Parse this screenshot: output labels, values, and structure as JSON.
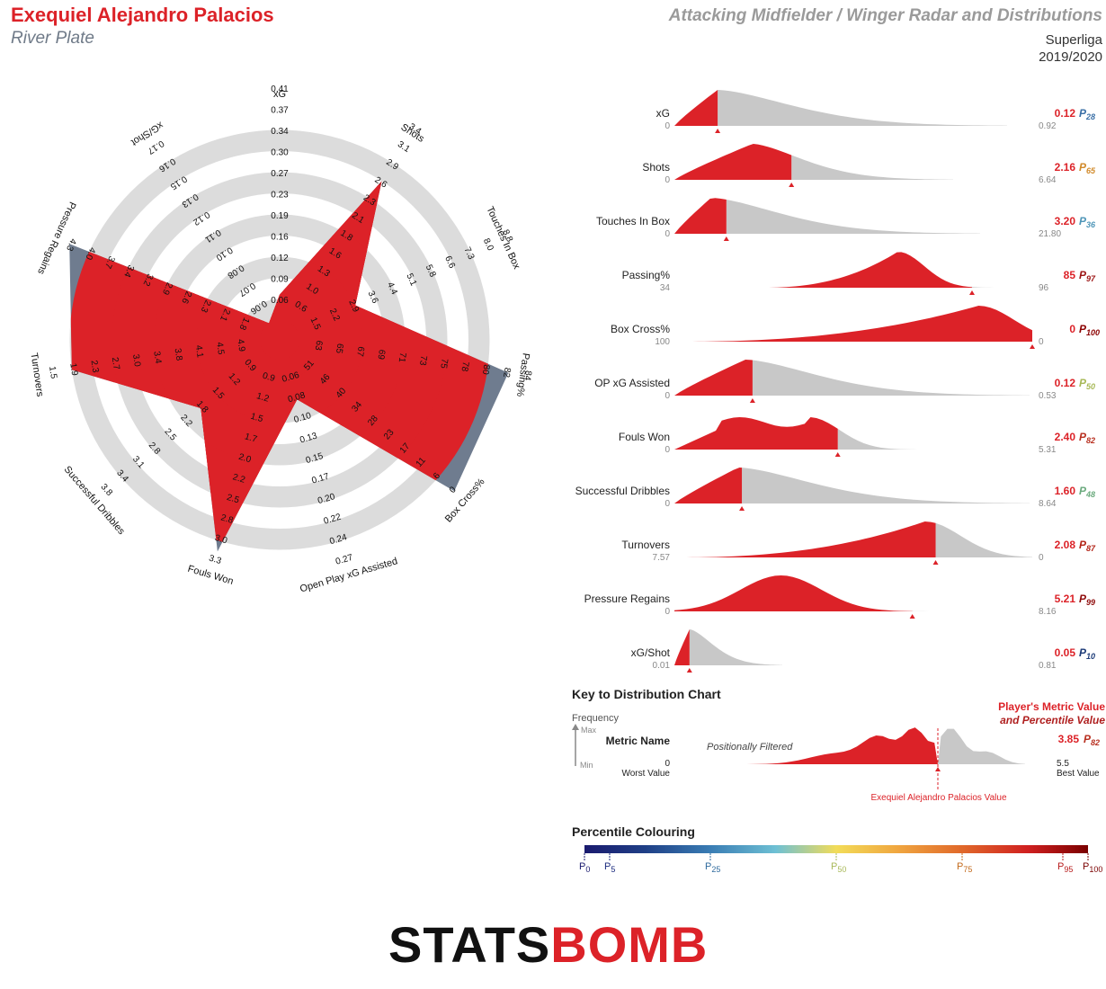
{
  "header": {
    "player_name": "Exequiel Alejandro Palacios",
    "team": "River Plate",
    "template_title": "Attacking Midfielder / Winger Radar and Distributions",
    "league": "Superliga",
    "season": "2019/2020"
  },
  "chart_data": [
    {
      "type": "radar",
      "axes": [
        {
          "name": "xG",
          "value": 0.12,
          "ticks": [
            "0.06",
            "0.09",
            "0.12",
            "0.16",
            "0.19",
            "0.23",
            "0.27",
            "0.30",
            "0.34",
            "0.37",
            "0.41"
          ]
        },
        {
          "name": "Shots",
          "value": 2.16,
          "ticks": [
            "0.6",
            "1.0",
            "1.3",
            "1.6",
            "1.8",
            "2.1",
            "2.3",
            "2.6",
            "2.9",
            "3.1",
            "3.4"
          ]
        },
        {
          "name": "Touches In Box",
          "value": 3.2,
          "ticks": [
            "1.5",
            "2.2",
            "2.9",
            "3.6",
            "4.4",
            "5.1",
            "5.8",
            "6.6",
            "7.3",
            "8.0",
            "8.8"
          ]
        },
        {
          "name": "Passing%",
          "value": 85,
          "ticks": [
            "63",
            "65",
            "67",
            "69",
            "71",
            "73",
            "75",
            "78",
            "80",
            "82",
            "84"
          ]
        },
        {
          "name": "Box Cross%",
          "value": 0,
          "ticks": [
            "51",
            "46",
            "40",
            "34",
            "28",
            "23",
            "17",
            "11",
            "6",
            "0"
          ]
        },
        {
          "name": "Open Play xG Assisted",
          "value": 0.12,
          "ticks": [
            "0.06",
            "0.08",
            "0.10",
            "0.13",
            "0.15",
            "0.17",
            "0.20",
            "0.22",
            "0.24",
            "0.27"
          ]
        },
        {
          "name": "Fouls Won",
          "value": 2.4,
          "ticks": [
            "0.9",
            "1.2",
            "1.5",
            "1.7",
            "2.0",
            "2.2",
            "2.5",
            "2.8",
            "3.0",
            "3.3"
          ]
        },
        {
          "name": "Successful Dribbles",
          "value": 1.6,
          "ticks": [
            "0.9",
            "1.2",
            "1.5",
            "1.8",
            "2.2",
            "2.5",
            "2.8",
            "3.1",
            "3.4",
            "3.8"
          ]
        },
        {
          "name": "Turnovers",
          "value": 2.08,
          "ticks": [
            "4.9",
            "4.5",
            "4.1",
            "3.8",
            "3.4",
            "3.0",
            "2.7",
            "2.3",
            "1.9",
            "1.5"
          ]
        },
        {
          "name": "Pressure Regains",
          "value": 5.21,
          "ticks": [
            "1.8",
            "2.1",
            "2.3",
            "2.6",
            "2.9",
            "3.2",
            "3.4",
            "3.7",
            "4.0",
            "4.3"
          ]
        },
        {
          "name": "xG/Shot",
          "value": 0.05,
          "ticks": [
            "0.06",
            "0.07",
            "0.08",
            "0.10",
            "0.11",
            "0.12",
            "0.13",
            "0.15",
            "0.16",
            "0.17"
          ]
        }
      ]
    },
    {
      "type": "area",
      "title": "Distributions",
      "metrics": [
        {
          "name": "xG",
          "worst": "0",
          "best": "0.92",
          "value": "0.12",
          "percentile": 28,
          "pct_color": "#3a6fa6"
        },
        {
          "name": "Shots",
          "worst": "0",
          "best": "6.64",
          "value": "2.16",
          "percentile": 65,
          "pct_color": "#d18a2a"
        },
        {
          "name": "Touches In Box",
          "worst": "0",
          "best": "21.80",
          "value": "3.20",
          "percentile": 36,
          "pct_color": "#4f96b8"
        },
        {
          "name": "Passing%",
          "worst": "34",
          "best": "96",
          "value": "85",
          "percentile": 97,
          "pct_color": "#9c1414"
        },
        {
          "name": "Box Cross%",
          "worst": "100",
          "best": "0",
          "value": "0",
          "percentile": 100,
          "pct_color": "#8b0000"
        },
        {
          "name": "OP xG Assisted",
          "worst": "0",
          "best": "0.53",
          "value": "0.12",
          "percentile": 50,
          "pct_color": "#a7b857"
        },
        {
          "name": "Fouls Won",
          "worst": "0",
          "best": "5.31",
          "value": "2.40",
          "percentile": 82,
          "pct_color": "#b83020"
        },
        {
          "name": "Successful Dribbles",
          "worst": "0",
          "best": "8.64",
          "value": "1.60",
          "percentile": 48,
          "pct_color": "#6aaa7d"
        },
        {
          "name": "Turnovers",
          "worst": "7.57",
          "best": "0",
          "value": "2.08",
          "percentile": 87,
          "pct_color": "#b32518"
        },
        {
          "name": "Pressure Regains",
          "worst": "0",
          "best": "8.16",
          "value": "5.21",
          "percentile": 99,
          "pct_color": "#8e0a0a"
        },
        {
          "name": "xG/Shot",
          "worst": "0.01",
          "best": "0.81",
          "value": "0.05",
          "percentile": 10,
          "pct_color": "#1d3b78"
        }
      ]
    }
  ],
  "key": {
    "title": "Key to Distribution Chart",
    "frequency": "Frequency",
    "max": "Max",
    "min": "Min",
    "metric_name": "Metric Name",
    "worst_num": "0",
    "worst_label": "Worst Value",
    "filtered": "Positionally Filtered",
    "player_value_label": "Exequiel Alejandro Palacios Value",
    "header_line1": "Player's Metric Value",
    "header_line2": "and Percentile Value",
    "example_value": "3.85",
    "example_percentile": 82,
    "best_num": "5.5",
    "best_label": "Best Value"
  },
  "percentile_colouring": {
    "title": "Percentile Colouring",
    "ticks": [
      {
        "p": 0,
        "label": "0",
        "color": "#1a1a6e"
      },
      {
        "p": 5,
        "label": "5",
        "color": "#1a2a7e"
      },
      {
        "p": 25,
        "label": "25",
        "color": "#2f6a9e"
      },
      {
        "p": 50,
        "label": "50",
        "color": "#a9b95a"
      },
      {
        "p": 75,
        "label": "75",
        "color": "#c36a1c"
      },
      {
        "p": 95,
        "label": "95",
        "color": "#b81c1c"
      },
      {
        "p": 100,
        "label": "100",
        "color": "#7a0000"
      }
    ]
  },
  "footer": {
    "logo_part1": "STATS",
    "logo_part2": "BOMB"
  }
}
